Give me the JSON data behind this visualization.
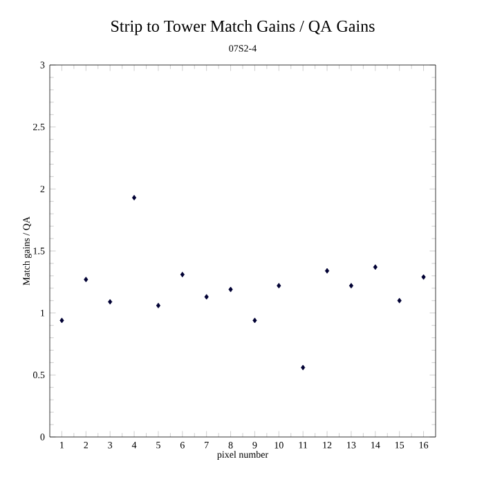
{
  "chart_data": {
    "type": "scatter",
    "title": "Strip to Tower Match Gains / QA Gains",
    "subtitle": "07S2-4",
    "xlabel": "pixel number",
    "ylabel": "Match gains / QA",
    "x": [
      1,
      2,
      3,
      4,
      5,
      6,
      7,
      8,
      9,
      10,
      11,
      12,
      13,
      14,
      15,
      16
    ],
    "values": [
      0.94,
      1.27,
      1.09,
      1.93,
      1.06,
      1.31,
      1.13,
      1.19,
      0.94,
      1.22,
      0.56,
      1.34,
      1.22,
      1.37,
      1.1,
      1.29
    ],
    "color": "#000033",
    "marker": "diamond",
    "xlim": [
      0.5,
      16.5
    ],
    "xticks": [
      1,
      2,
      3,
      4,
      5,
      6,
      7,
      8,
      9,
      10,
      11,
      12,
      13,
      14,
      15,
      16
    ],
    "ylim": [
      0,
      3
    ],
    "yticks": [
      0,
      0.5,
      1,
      1.5,
      2,
      2.5,
      3
    ]
  }
}
